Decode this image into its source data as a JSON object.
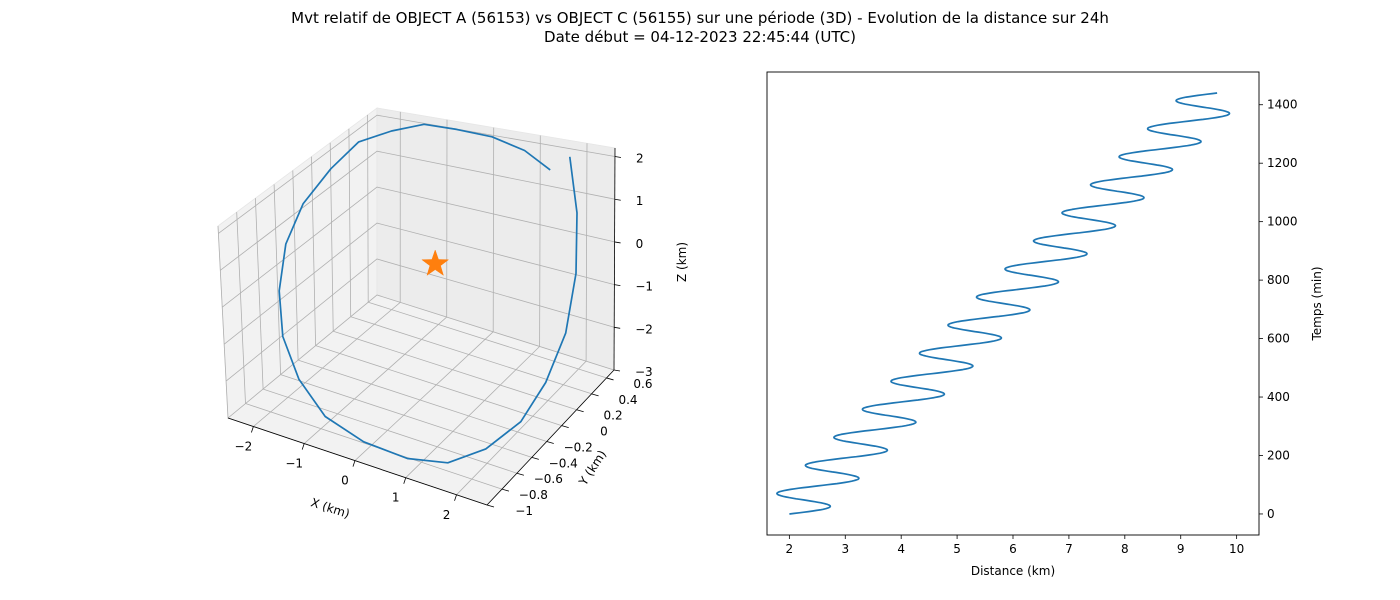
{
  "figure": {
    "title_line1": "Mvt relatif de OBJECT A (56153) vs OBJECT C (56155) sur une période (3D) - Evolution de la distance sur 24h",
    "title_line2": "Date début = 04-12-2023 22:45:44 (UTC)",
    "colors": {
      "line": "#1f77b4",
      "marker": "#ff7f0e"
    }
  },
  "chart_data": [
    {
      "type": "line",
      "projection": "3d",
      "xlabel": "X (km)",
      "ylabel": "Y (km)",
      "zlabel": "Z (km)",
      "xticks": [
        -2,
        -1,
        0,
        1,
        2
      ],
      "yticks": [
        -1.0,
        -0.8,
        -0.6,
        -0.4,
        -0.2,
        0.0,
        0.2,
        0.4,
        0.6
      ],
      "zticks": [
        -3,
        -2,
        -1,
        0,
        1,
        2
      ],
      "xlim": [
        -2.5,
        2.6
      ],
      "ylim": [
        -1.0,
        0.7
      ],
      "zlim": [
        -3.0,
        2.2
      ],
      "grid": true,
      "marker": {
        "shape": "star",
        "x": 0,
        "y": 0,
        "z": 0
      },
      "series": [
        {
          "x": [
            1.8,
            2.2,
            2.5,
            2.6,
            2.5,
            2.3,
            1.9,
            1.4,
            0.8,
            0.1,
            -0.6,
            -1.2,
            -1.7,
            -2.1,
            -2.4,
            -2.5,
            -2.4,
            -2.2,
            -1.8,
            -1.3,
            -0.7,
            0.0,
            0.7,
            1.3
          ],
          "y": [
            0.6,
            0.45,
            0.25,
            0.05,
            -0.15,
            -0.35,
            -0.55,
            -0.72,
            -0.85,
            -0.95,
            -0.98,
            -0.92,
            -0.8,
            -0.6,
            -0.35,
            -0.1,
            0.15,
            0.35,
            0.5,
            0.6,
            0.65,
            0.68,
            0.68,
            0.65
          ],
          "z": [
            2.0,
            1.0,
            0.0,
            -1.0,
            -1.8,
            -2.4,
            -2.8,
            -3.0,
            -2.9,
            -2.6,
            -2.2,
            -1.6,
            -0.9,
            -0.2,
            0.5,
            1.1,
            1.6,
            2.0,
            2.1,
            2.2,
            2.1,
            2.0,
            1.8,
            1.5
          ]
        }
      ]
    },
    {
      "type": "line",
      "xlabel": "Distance (km)",
      "ylabel": "Temps (min)",
      "xticks": [
        2,
        3,
        4,
        5,
        6,
        7,
        8,
        9,
        10
      ],
      "yticks": [
        0,
        200,
        400,
        600,
        800,
        1000,
        1200,
        1400
      ],
      "xlim": [
        1.6,
        10.4
      ],
      "ylim": [
        -72,
        1512
      ],
      "grid": false,
      "y_axis_side": "right",
      "series": [
        {
          "formula": "distance = 2 + 7.65*t/1440 + 0.6*sin(2*pi*t/96)",
          "period_min": 96,
          "amplitude_km": 0.6,
          "t_max": 1440
        }
      ]
    }
  ]
}
